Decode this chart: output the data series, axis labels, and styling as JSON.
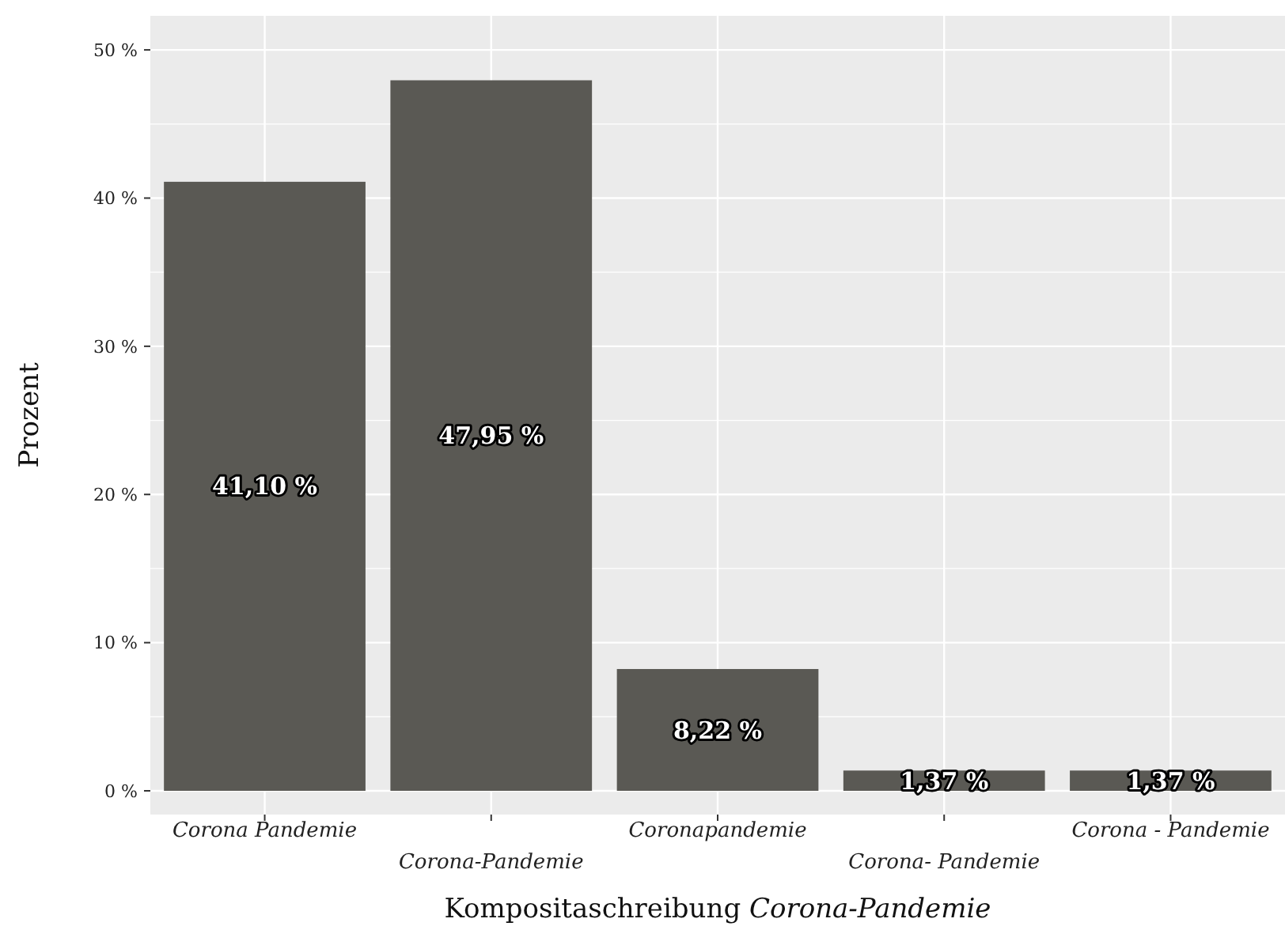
{
  "chart_data": {
    "type": "bar",
    "xlabel": "Kompositaschreibung Corona-Pandemie",
    "ylabel": "Prozent",
    "categories": [
      "Corona Pandemie",
      "Corona-Pandemie",
      "Coronapandemie",
      "Corona- Pandemie",
      "Corona - Pandemie"
    ],
    "values": [
      41.1,
      47.95,
      8.22,
      1.37,
      1.37
    ],
    "value_labels": [
      "41,10 %",
      "47,95 %",
      "8,22 %",
      "1,37 %",
      "1,37 %"
    ],
    "color": "#5a5954",
    "ylim": [
      -1.6,
      52.3
    ],
    "yticks": [
      {
        "value": 0,
        "label": "0 %"
      },
      {
        "value": 10,
        "label": "10 %"
      },
      {
        "value": 20,
        "label": "20 %"
      },
      {
        "value": 30,
        "label": "30 %"
      },
      {
        "value": 40,
        "label": "40 %"
      },
      {
        "value": 50,
        "label": "50 %"
      }
    ],
    "grid": true
  }
}
